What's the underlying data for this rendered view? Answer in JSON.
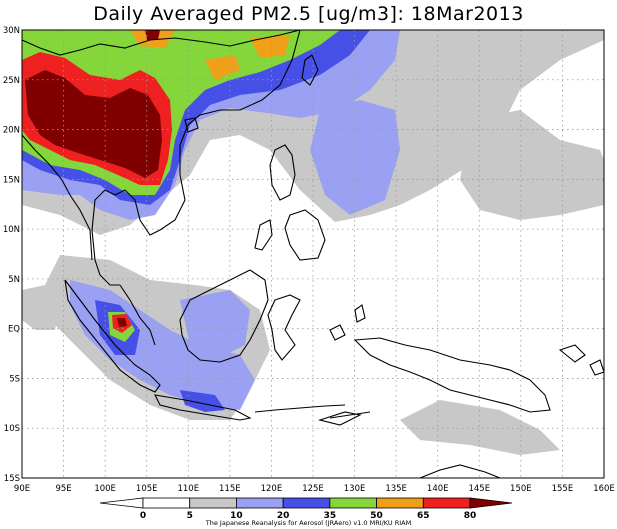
{
  "title": "Daily Averaged PM2.5 [ug/m3]: 18Mar2013",
  "credit": "The Japanese Reanalysis for Aerosol (JRAero) v1.0 MRI/KU RIAM",
  "lat_labels": [
    "30N",
    "25N",
    "20N",
    "15N",
    "10N",
    "5N",
    "EQ",
    "5S",
    "10S",
    "15S"
  ],
  "lon_labels": [
    "90E",
    "95E",
    "100E",
    "105E",
    "110E",
    "115E",
    "120E",
    "125E",
    "130E",
    "135E",
    "140E",
    "145E",
    "150E",
    "155E",
    "160E"
  ],
  "colorbar": {
    "tick_labels": [
      "0",
      "5",
      "10",
      "20",
      "35",
      "50",
      "65",
      "80"
    ],
    "colors": [
      "#ffffff",
      "#ffffff",
      "#c8c8c8",
      "#9aa0f2",
      "#4750e6",
      "#84d63a",
      "#f0a018",
      "#ee2020",
      "#800000"
    ]
  }
}
